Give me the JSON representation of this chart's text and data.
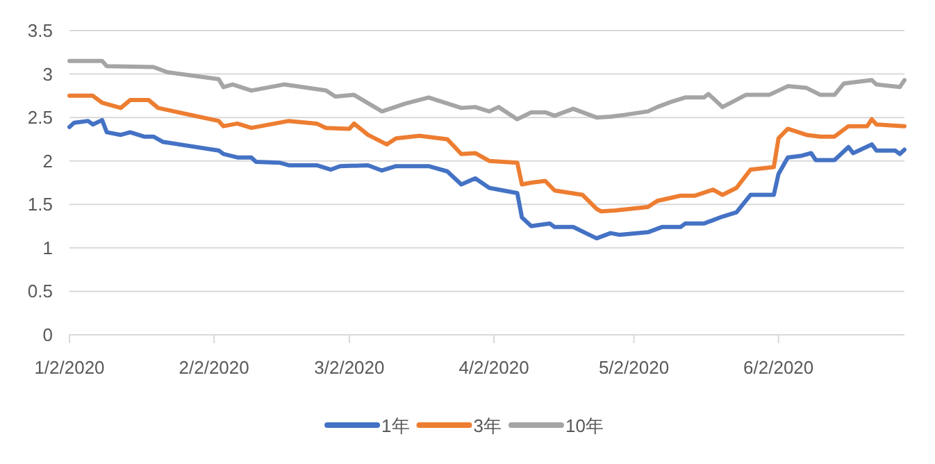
{
  "chart_data": {
    "type": "line",
    "xlim": [
      "2020-01-02",
      "2020-06-29"
    ],
    "ylim": [
      0,
      3.5
    ],
    "xticks": [
      {
        "value": "2020-01-02",
        "label": "1/2/2020"
      },
      {
        "value": "2020-02-02",
        "label": "2/2/2020"
      },
      {
        "value": "2020-03-02",
        "label": "3/2/2020"
      },
      {
        "value": "2020-04-02",
        "label": "4/2/2020"
      },
      {
        "value": "2020-05-02",
        "label": "5/2/2020"
      },
      {
        "value": "2020-06-02",
        "label": "6/2/2020"
      }
    ],
    "yticks": [
      0,
      0.5,
      1,
      1.5,
      2,
      2.5,
      3,
      3.5
    ],
    "grid": "y",
    "legend": "bottom",
    "series": [
      {
        "name": "1年",
        "color": "#4472c4",
        "x": [
          "2020-01-02",
          "2020-01-03",
          "2020-01-06",
          "2020-01-07",
          "2020-01-09",
          "2020-01-10",
          "2020-01-13",
          "2020-01-15",
          "2020-01-18",
          "2020-01-20",
          "2020-01-22",
          "2020-02-03",
          "2020-02-04",
          "2020-02-07",
          "2020-02-10",
          "2020-02-11",
          "2020-02-16",
          "2020-02-18",
          "2020-02-24",
          "2020-02-27",
          "2020-02-29",
          "2020-03-06",
          "2020-03-09",
          "2020-03-12",
          "2020-03-19",
          "2020-03-23",
          "2020-03-26",
          "2020-03-29",
          "2020-04-01",
          "2020-04-04",
          "2020-04-07",
          "2020-04-08",
          "2020-04-10",
          "2020-04-14",
          "2020-04-15",
          "2020-04-19",
          "2020-04-24",
          "2020-04-27",
          "2020-04-29",
          "2020-05-05",
          "2020-05-08",
          "2020-05-12",
          "2020-05-13",
          "2020-05-17",
          "2020-05-19",
          "2020-05-21",
          "2020-05-24",
          "2020-05-27",
          "2020-06-01",
          "2020-06-02",
          "2020-06-04",
          "2020-06-07",
          "2020-06-09",
          "2020-06-10",
          "2020-06-14",
          "2020-06-17",
          "2020-06-18",
          "2020-06-22",
          "2020-06-23",
          "2020-06-27",
          "2020-06-28",
          "2020-06-29"
        ],
        "values": [
          2.39,
          2.44,
          2.46,
          2.42,
          2.47,
          2.33,
          2.3,
          2.33,
          2.28,
          2.28,
          2.22,
          2.12,
          2.08,
          2.04,
          2.04,
          1.99,
          1.98,
          1.95,
          1.95,
          1.9,
          1.94,
          1.95,
          1.89,
          1.94,
          1.94,
          1.88,
          1.73,
          1.8,
          1.69,
          1.66,
          1.63,
          1.35,
          1.25,
          1.28,
          1.24,
          1.24,
          1.11,
          1.17,
          1.15,
          1.18,
          1.24,
          1.24,
          1.28,
          1.28,
          1.32,
          1.36,
          1.41,
          1.61,
          1.61,
          1.85,
          2.04,
          2.06,
          2.09,
          2.01,
          2.01,
          2.16,
          2.09,
          2.19,
          2.12,
          2.12,
          2.08,
          2.13
        ]
      },
      {
        "name": "3年",
        "color": "#ed7d31",
        "x": [
          "2020-01-02",
          "2020-01-07",
          "2020-01-09",
          "2020-01-13",
          "2020-01-15",
          "2020-01-19",
          "2020-01-21",
          "2020-02-03",
          "2020-02-04",
          "2020-02-07",
          "2020-02-10",
          "2020-02-18",
          "2020-02-24",
          "2020-02-26",
          "2020-03-02",
          "2020-03-03",
          "2020-03-06",
          "2020-03-10",
          "2020-03-12",
          "2020-03-17",
          "2020-03-23",
          "2020-03-26",
          "2020-03-29",
          "2020-04-01",
          "2020-04-07",
          "2020-04-08",
          "2020-04-10",
          "2020-04-13",
          "2020-04-15",
          "2020-04-21",
          "2020-04-24",
          "2020-04-25",
          "2020-04-28",
          "2020-05-05",
          "2020-05-07",
          "2020-05-12",
          "2020-05-15",
          "2020-05-19",
          "2020-05-21",
          "2020-05-24",
          "2020-05-27",
          "2020-06-01",
          "2020-06-02",
          "2020-06-04",
          "2020-06-08",
          "2020-06-11",
          "2020-06-14",
          "2020-06-16",
          "2020-06-17",
          "2020-06-21",
          "2020-06-22",
          "2020-06-23",
          "2020-06-29"
        ],
        "values": [
          2.75,
          2.75,
          2.67,
          2.61,
          2.7,
          2.7,
          2.61,
          2.46,
          2.4,
          2.43,
          2.38,
          2.46,
          2.43,
          2.38,
          2.37,
          2.43,
          2.3,
          2.19,
          2.26,
          2.29,
          2.25,
          2.08,
          2.09,
          2.0,
          1.98,
          1.73,
          1.75,
          1.77,
          1.66,
          1.61,
          1.45,
          1.42,
          1.43,
          1.47,
          1.54,
          1.6,
          1.6,
          1.67,
          1.61,
          1.69,
          1.9,
          1.93,
          2.26,
          2.37,
          2.3,
          2.28,
          2.28,
          2.36,
          2.4,
          2.4,
          2.48,
          2.42,
          2.4
        ]
      },
      {
        "name": "10年",
        "color": "#a5a5a5",
        "x": [
          "2020-01-02",
          "2020-01-09",
          "2020-01-10",
          "2020-01-20",
          "2020-01-23",
          "2020-02-03",
          "2020-02-04",
          "2020-02-06",
          "2020-02-10",
          "2020-02-17",
          "2020-02-26",
          "2020-02-28",
          "2020-03-03",
          "2020-03-09",
          "2020-03-14",
          "2020-03-19",
          "2020-03-26",
          "2020-03-29",
          "2020-04-01",
          "2020-04-03",
          "2020-04-07",
          "2020-04-10",
          "2020-04-13",
          "2020-04-15",
          "2020-04-19",
          "2020-04-24",
          "2020-04-27",
          "2020-04-30",
          "2020-05-05",
          "2020-05-07",
          "2020-05-10",
          "2020-05-13",
          "2020-05-17",
          "2020-05-18",
          "2020-05-21",
          "2020-05-26",
          "2020-05-31",
          "2020-06-04",
          "2020-06-08",
          "2020-06-11",
          "2020-06-14",
          "2020-06-16",
          "2020-06-22",
          "2020-06-23",
          "2020-06-28",
          "2020-06-29"
        ],
        "values": [
          3.15,
          3.15,
          3.09,
          3.08,
          3.02,
          2.94,
          2.85,
          2.88,
          2.81,
          2.88,
          2.81,
          2.74,
          2.76,
          2.57,
          2.66,
          2.73,
          2.61,
          2.62,
          2.57,
          2.62,
          2.48,
          2.56,
          2.56,
          2.52,
          2.6,
          2.5,
          2.51,
          2.53,
          2.57,
          2.62,
          2.68,
          2.73,
          2.73,
          2.77,
          2.62,
          2.76,
          2.76,
          2.86,
          2.84,
          2.76,
          2.76,
          2.89,
          2.93,
          2.88,
          2.85,
          2.93
        ]
      }
    ]
  }
}
